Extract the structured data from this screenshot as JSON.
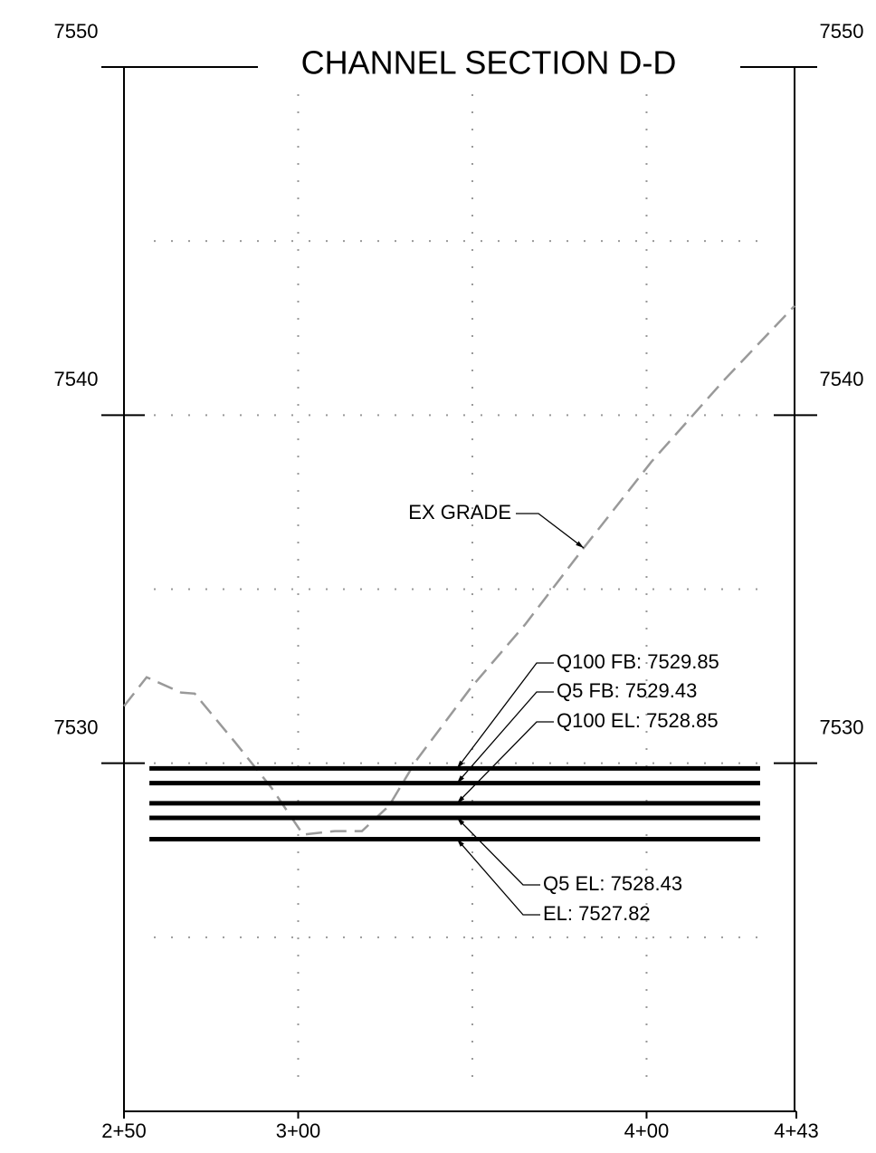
{
  "chart_data": {
    "type": "line",
    "title": "CHANNEL SECTION D-D",
    "xlim": [
      250,
      443
    ],
    "ylim": [
      7520,
      7550
    ],
    "xticks": [
      {
        "value": 250,
        "label": "2+50"
      },
      {
        "value": 300,
        "label": "3+00"
      },
      {
        "value": 400,
        "label": "4+00"
      },
      {
        "value": 443,
        "label": "4+43"
      }
    ],
    "yticks": [
      7530,
      7540,
      7550
    ],
    "xgrid": [
      300,
      350,
      400
    ],
    "ygrid": [
      7525,
      7530,
      7535,
      7540,
      7545
    ],
    "grid": true,
    "series": [
      {
        "name": "EX GRADE",
        "color": "#999999",
        "dashed": true,
        "x": [
          250,
          256.5,
          266.4,
          270.3,
          281.9,
          292.3,
          301.4,
          310.5,
          318.3,
          326.1,
          333.9,
          349.5,
          365.1,
          382.0,
          401.4,
          422.2,
          442.5
        ],
        "values": [
          7531.64,
          7532.47,
          7532.03,
          7532.0,
          7530.6,
          7529.3,
          7527.95,
          7528.05,
          7528.05,
          7528.78,
          7530.08,
          7532.16,
          7533.98,
          7536.19,
          7538.66,
          7541.0,
          7543.14
        ]
      }
    ],
    "levels": [
      {
        "label": "Q100 FB: 7529.85",
        "value": 7529.85
      },
      {
        "label": "Q5 FB: 7529.43",
        "value": 7529.43
      },
      {
        "label": "Q100 EL: 7528.85",
        "value": 7528.85
      },
      {
        "label": "Q5 EL: 7528.43",
        "value": 7528.43
      },
      {
        "label": "EL: 7527.82",
        "value": 7527.82
      }
    ],
    "level_x": [
      257.3,
      432.6
    ],
    "level_color": "#000000"
  }
}
